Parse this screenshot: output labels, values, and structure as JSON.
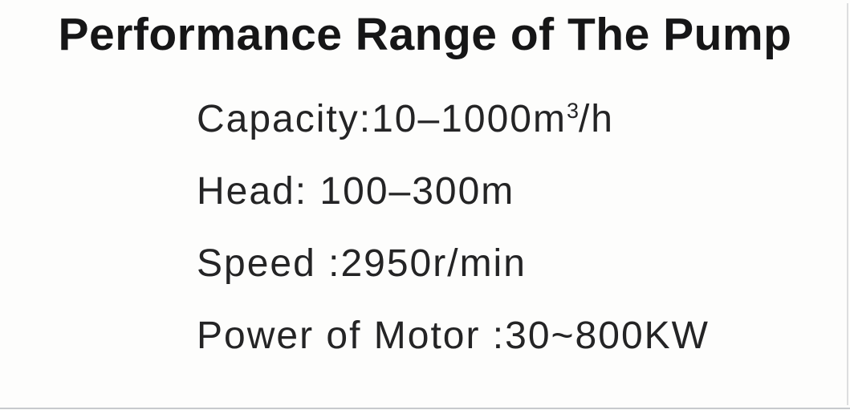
{
  "page": {
    "title": "Performance Range of The Pump",
    "specs": [
      {
        "pre": "Capacity:10–1000m",
        "sup": "3",
        "post": "/h"
      },
      {
        "pre": "Head: 100–300m",
        "sup": "",
        "post": ""
      },
      {
        "pre": "Speed :2950r/min",
        "sup": "",
        "post": ""
      },
      {
        "pre": "Power of Motor :30~800KW",
        "sup": "",
        "post": ""
      }
    ],
    "colors": {
      "background": "#fdfdfc",
      "title_text": "#161617",
      "body_text": "#242425",
      "scan_border": "#c7cacd"
    }
  }
}
